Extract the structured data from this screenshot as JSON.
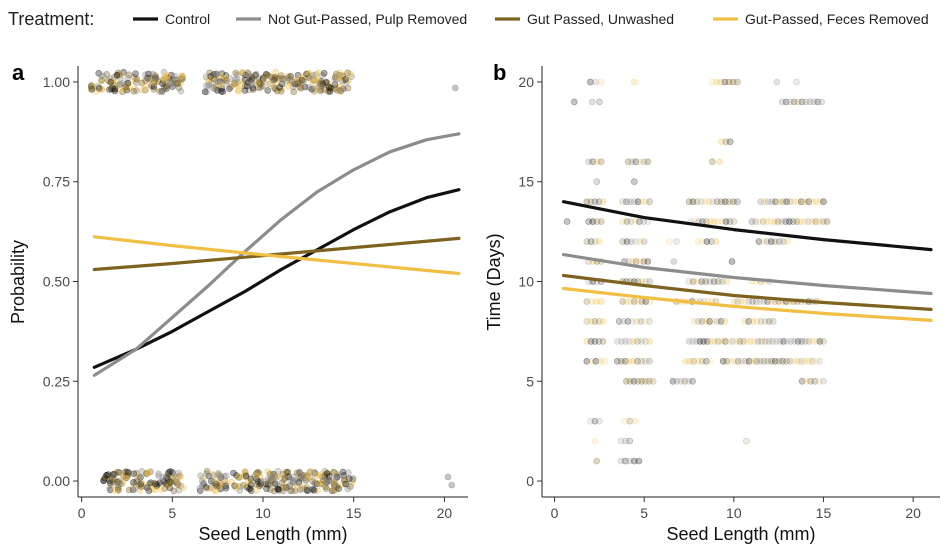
{
  "legend": {
    "title": "Treatment:",
    "items": [
      {
        "label": "Control",
        "color": "#111111"
      },
      {
        "label": "Not Gut-Passed, Pulp Removed",
        "color": "#8c8c8c"
      },
      {
        "label": "Gut Passed, Unwashed",
        "color": "#7d6220"
      },
      {
        "label": "Gut-Passed, Feces Removed",
        "color": "#f2bf45"
      }
    ]
  },
  "chart_data": [
    {
      "type": "line",
      "panel_label": "a",
      "xlabel": "Seed Length (mm)",
      "ylabel": "Probability",
      "xlim": [
        -0.2,
        21.3
      ],
      "ylim": [
        -0.04,
        1.04
      ],
      "x_ticks": [
        0,
        5,
        10,
        15,
        20
      ],
      "x_tick_labels": [
        "0",
        "5",
        "10",
        "15",
        "20"
      ],
      "y_ticks": [
        0,
        0.25,
        0.5,
        0.75,
        1
      ],
      "y_tick_labels": [
        "0.00",
        "0.25",
        "0.50",
        "0.75",
        "1.00"
      ],
      "grid": false,
      "legend_position": "top",
      "series": [
        {
          "name": "Control",
          "color": "#111111",
          "x": [
            0.7,
            3,
            5,
            7,
            9,
            11,
            13,
            15,
            17,
            19,
            20.8
          ],
          "y": [
            0.285,
            0.33,
            0.375,
            0.425,
            0.475,
            0.53,
            0.58,
            0.63,
            0.675,
            0.71,
            0.73
          ]
        },
        {
          "name": "Not Gut-Passed, Pulp Removed",
          "color": "#8c8c8c",
          "x": [
            0.7,
            3,
            5,
            7,
            9,
            11,
            13,
            15,
            17,
            19,
            20.8
          ],
          "y": [
            0.265,
            0.33,
            0.41,
            0.49,
            0.575,
            0.655,
            0.725,
            0.78,
            0.825,
            0.855,
            0.87
          ]
        },
        {
          "name": "Gut Passed, Unwashed",
          "color": "#7d6220",
          "x": [
            0.7,
            5,
            10,
            15,
            20.8
          ],
          "y": [
            0.53,
            0.545,
            0.565,
            0.585,
            0.608
          ]
        },
        {
          "name": "Gut-Passed, Feces Removed",
          "color": "#f2bf45",
          "x": [
            0.7,
            5,
            10,
            15,
            20.8
          ],
          "y": [
            0.612,
            0.59,
            0.567,
            0.545,
            0.52
          ]
        }
      ],
      "point_clusters": [
        {
          "y": 1,
          "x_ranges": [
            [
              0.5,
              5.6
            ],
            [
              6.8,
              14.9
            ]
          ],
          "count": 340
        },
        {
          "y": 0,
          "x_ranges": [
            [
              1.2,
              5.6
            ],
            [
              6.5,
              15.0
            ]
          ],
          "count": 340
        }
      ],
      "isolated_points": [
        {
          "x": 20.6,
          "y": 0.985
        },
        {
          "x": 20.2,
          "y": 0.01
        },
        {
          "x": 20.4,
          "y": -0.01
        }
      ]
    },
    {
      "type": "line",
      "panel_label": "b",
      "xlabel": "Seed Length (mm)",
      "ylabel": "Time (Days)",
      "xlim": [
        -0.7,
        21.5
      ],
      "ylim": [
        -0.8,
        20.8
      ],
      "x_ticks": [
        0,
        5,
        10,
        15,
        20
      ],
      "x_tick_labels": [
        "0",
        "5",
        "10",
        "15",
        "20"
      ],
      "y_ticks": [
        0,
        5,
        10,
        15,
        20
      ],
      "y_tick_labels": [
        "0",
        "5",
        "10",
        "15",
        "20"
      ],
      "grid": false,
      "series": [
        {
          "name": "Control",
          "color": "#111111",
          "x": [
            0.5,
            5,
            10,
            15,
            21
          ],
          "y": [
            14.0,
            13.2,
            12.6,
            12.1,
            11.6
          ]
        },
        {
          "name": "Not Gut-Passed, Pulp Removed",
          "color": "#8c8c8c",
          "x": [
            0.5,
            5,
            10,
            15,
            21
          ],
          "y": [
            11.35,
            10.7,
            10.2,
            9.8,
            9.4
          ]
        },
        {
          "name": "Gut Passed, Unwashed",
          "color": "#7d6220",
          "x": [
            0.5,
            5,
            10,
            15,
            21
          ],
          "y": [
            10.3,
            9.8,
            9.3,
            8.95,
            8.6
          ]
        },
        {
          "name": "Gut-Passed, Feces Removed",
          "color": "#f2bf45",
          "x": [
            0.5,
            5,
            10,
            15,
            21
          ],
          "y": [
            9.65,
            9.2,
            8.75,
            8.4,
            8.05
          ]
        }
      ],
      "point_rows": [
        {
          "y": 20,
          "x_ranges": [
            [
              2.0,
              2.6
            ],
            [
              4.3,
              4.6
            ],
            [
              8.8,
              10.2
            ],
            [
              12.3,
              12.5
            ],
            [
              13.4,
              13.6
            ]
          ]
        },
        {
          "y": 19,
          "x_ranges": [
            [
              1.0,
              1.2
            ],
            [
              2.1,
              2.5
            ],
            [
              12.7,
              14.9
            ]
          ]
        },
        {
          "y": 17,
          "x_ranges": [
            [
              9.3,
              9.8
            ]
          ]
        },
        {
          "y": 16,
          "x_ranges": [
            [
              1.9,
              2.6
            ],
            [
              4.1,
              5.2
            ],
            [
              8.8,
              9.2
            ]
          ]
        },
        {
          "y": 15,
          "x_ranges": [
            [
              2.2,
              2.5
            ],
            [
              4.3,
              4.6
            ]
          ]
        },
        {
          "y": 14,
          "x_ranges": [
            [
              1.8,
              2.7
            ],
            [
              3.8,
              5.3
            ],
            [
              7.5,
              10.2
            ],
            [
              11.5,
              15.0
            ]
          ]
        },
        {
          "y": 13,
          "x_ranges": [
            [
              0.6,
              0.8
            ],
            [
              1.9,
              2.6
            ],
            [
              3.8,
              5.2
            ],
            [
              7.6,
              10.0
            ],
            [
              11.0,
              15.2
            ]
          ]
        },
        {
          "y": 12,
          "x_ranges": [
            [
              1.8,
              2.5
            ],
            [
              3.8,
              5.0
            ],
            [
              6.4,
              6.8
            ],
            [
              8.0,
              9.0
            ],
            [
              11.4,
              13.0
            ]
          ]
        },
        {
          "y": 11,
          "x_ranges": [
            [
              1.9,
              2.6
            ],
            [
              3.9,
              5.2
            ],
            [
              6.5,
              6.8
            ],
            [
              9.8,
              10.0
            ]
          ]
        },
        {
          "y": 10,
          "x_ranges": [
            [
              1.9,
              2.6
            ],
            [
              3.8,
              5.3
            ],
            [
              7.5,
              9.6
            ],
            [
              11.0,
              12.0
            ]
          ]
        },
        {
          "y": 9,
          "x_ranges": [
            [
              1.8,
              2.6
            ],
            [
              3.8,
              5.3
            ],
            [
              6.8,
              9.0
            ],
            [
              10.0,
              14.8
            ]
          ]
        },
        {
          "y": 8,
          "x_ranges": [
            [
              1.8,
              2.7
            ],
            [
              3.6,
              5.3
            ],
            [
              7.8,
              9.5
            ],
            [
              10.6,
              12.2
            ]
          ]
        },
        {
          "y": 7,
          "x_ranges": [
            [
              1.8,
              2.7
            ],
            [
              3.5,
              5.3
            ],
            [
              7.5,
              15.0
            ]
          ]
        },
        {
          "y": 6,
          "x_ranges": [
            [
              1.8,
              2.8
            ],
            [
              3.5,
              5.3
            ],
            [
              7.3,
              8.7
            ],
            [
              9.4,
              14.8
            ]
          ]
        },
        {
          "y": 5,
          "x_ranges": [
            [
              4.0,
              5.5
            ],
            [
              6.6,
              7.7
            ],
            [
              13.8,
              15.0
            ]
          ]
        },
        {
          "y": 3,
          "x_ranges": [
            [
              2.0,
              2.5
            ],
            [
              3.9,
              4.5
            ]
          ]
        },
        {
          "y": 2,
          "x_ranges": [
            [
              2.1,
              2.4
            ],
            [
              3.7,
              4.2
            ],
            [
              10.6,
              10.8
            ]
          ]
        },
        {
          "y": 1,
          "x_ranges": [
            [
              2.2,
              2.5
            ],
            [
              3.7,
              4.7
            ]
          ]
        }
      ]
    }
  ]
}
